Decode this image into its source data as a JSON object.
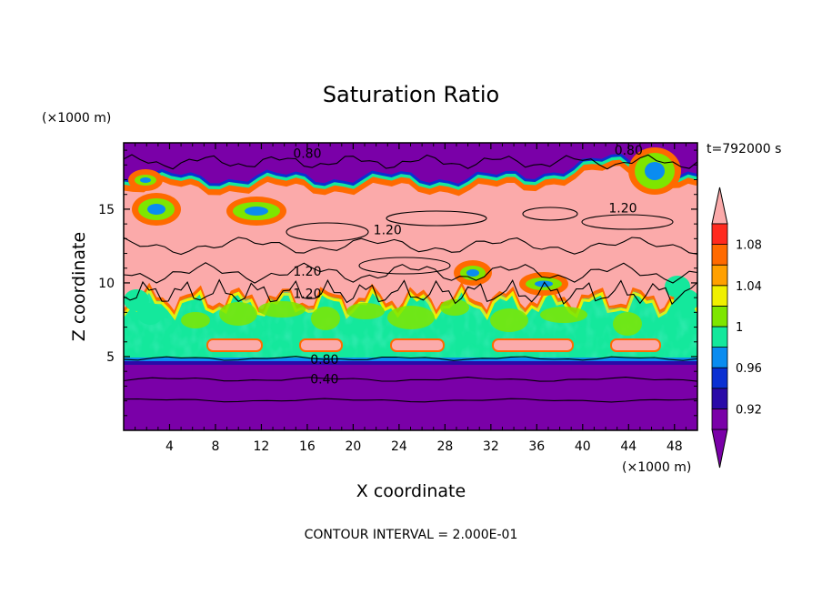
{
  "chart_data": {
    "type": "heatmap",
    "title": "Saturation Ratio",
    "xlabel": "X coordinate",
    "ylabel": "Z coordinate",
    "x_unit": "(×1000 m)",
    "y_unit": "(×1000 m)",
    "time_label": "t=792000 s",
    "footer": "CONTOUR INTERVAL = 2.000E-01",
    "xlim": [
      0,
      50
    ],
    "ylim": [
      0,
      19.5
    ],
    "x_ticks": [
      4,
      8,
      12,
      16,
      20,
      24,
      28,
      32,
      36,
      40,
      44,
      48
    ],
    "y_ticks": [
      5,
      10,
      15
    ],
    "colorbar": {
      "levels": [
        0.9,
        0.92,
        0.94,
        0.96,
        0.98,
        1.0,
        1.02,
        1.04,
        1.06,
        1.08,
        1.1
      ],
      "tick_values": [
        0.92,
        0.96,
        1.0,
        1.04,
        1.08
      ],
      "tick_labels": [
        "0.92",
        "0.96",
        "1",
        "1.04",
        "1.08"
      ],
      "colors": [
        "#7a00a8",
        "#2a0aa8",
        "#0a30d2",
        "#0a8cf0",
        "#14e89c",
        "#7ee600",
        "#f0f000",
        "#ffa000",
        "#ff6a00",
        "#ff2a1e",
        "#fbaaaa"
      ],
      "extend": "both"
    },
    "contour_labels": [
      {
        "text": "0.80",
        "x": 16,
        "z": 18.8
      },
      {
        "text": "0.80",
        "x": 44,
        "z": 19.0
      },
      {
        "text": "1.20",
        "x": 43.5,
        "z": 15.1
      },
      {
        "text": "1.20",
        "x": 23,
        "z": 13.6
      },
      {
        "text": "1.20",
        "x": 16,
        "z": 10.8
      },
      {
        "text": "1.20",
        "x": 16,
        "z": 9.3
      },
      {
        "text": "0.80",
        "x": 17.5,
        "z": 4.8
      },
      {
        "text": "0.40",
        "x": 17.5,
        "z": 3.5
      }
    ]
  }
}
